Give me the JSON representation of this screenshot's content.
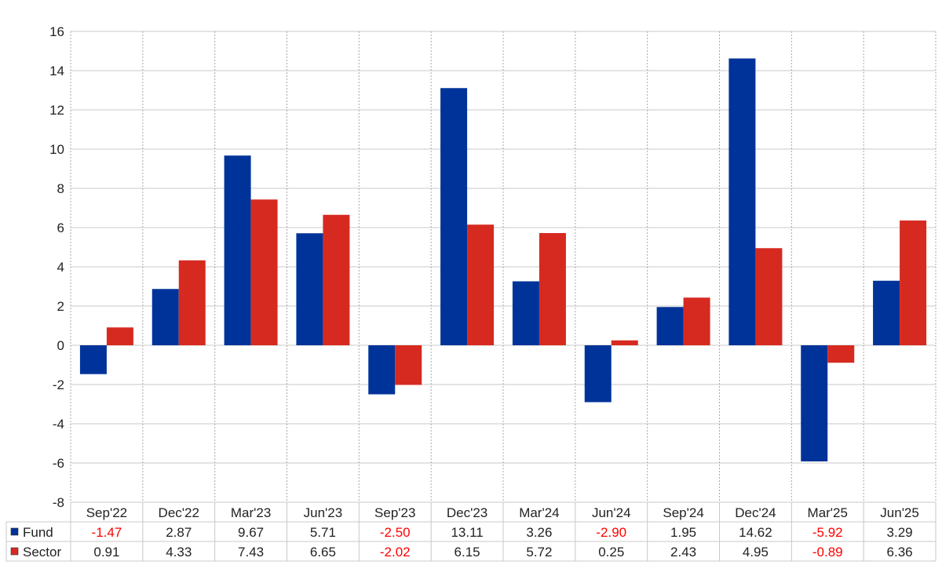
{
  "chart_data": {
    "type": "bar",
    "categories": [
      "Sep'22",
      "Dec'22",
      "Mar'23",
      "Jun'23",
      "Sep'23",
      "Dec'23",
      "Mar'24",
      "Jun'24",
      "Sep'24",
      "Dec'24",
      "Mar'25",
      "Jun'25"
    ],
    "series": [
      {
        "name": "Fund",
        "color": "#003399",
        "values": [
          -1.47,
          2.87,
          9.67,
          5.71,
          -2.5,
          13.11,
          3.26,
          -2.9,
          1.95,
          14.62,
          -5.92,
          3.29
        ],
        "labels": [
          "-1.47",
          "2.87",
          "9.67",
          "5.71",
          "-2.50",
          "13.11",
          "3.26",
          "-2.90",
          "1.95",
          "14.62",
          "-5.92",
          "3.29"
        ]
      },
      {
        "name": "Sector",
        "color": "#d62a20",
        "values": [
          0.91,
          4.33,
          7.43,
          6.65,
          -2.02,
          6.15,
          5.72,
          0.25,
          2.43,
          4.95,
          -0.89,
          6.36
        ],
        "labels": [
          "0.91",
          "4.33",
          "7.43",
          "6.65",
          "-2.02",
          "6.15",
          "5.72",
          "0.25",
          "2.43",
          "4.95",
          "-0.89",
          "6.36"
        ]
      }
    ],
    "ylim": [
      -8,
      16
    ],
    "yticks": [
      "16",
      "14",
      "12",
      "10",
      "8",
      "6",
      "4",
      "2",
      "0",
      "-2",
      "-4",
      "-6",
      "-8"
    ],
    "grid": true,
    "legend": "data table rows below chart",
    "negative_value_color": "#ff0000"
  }
}
